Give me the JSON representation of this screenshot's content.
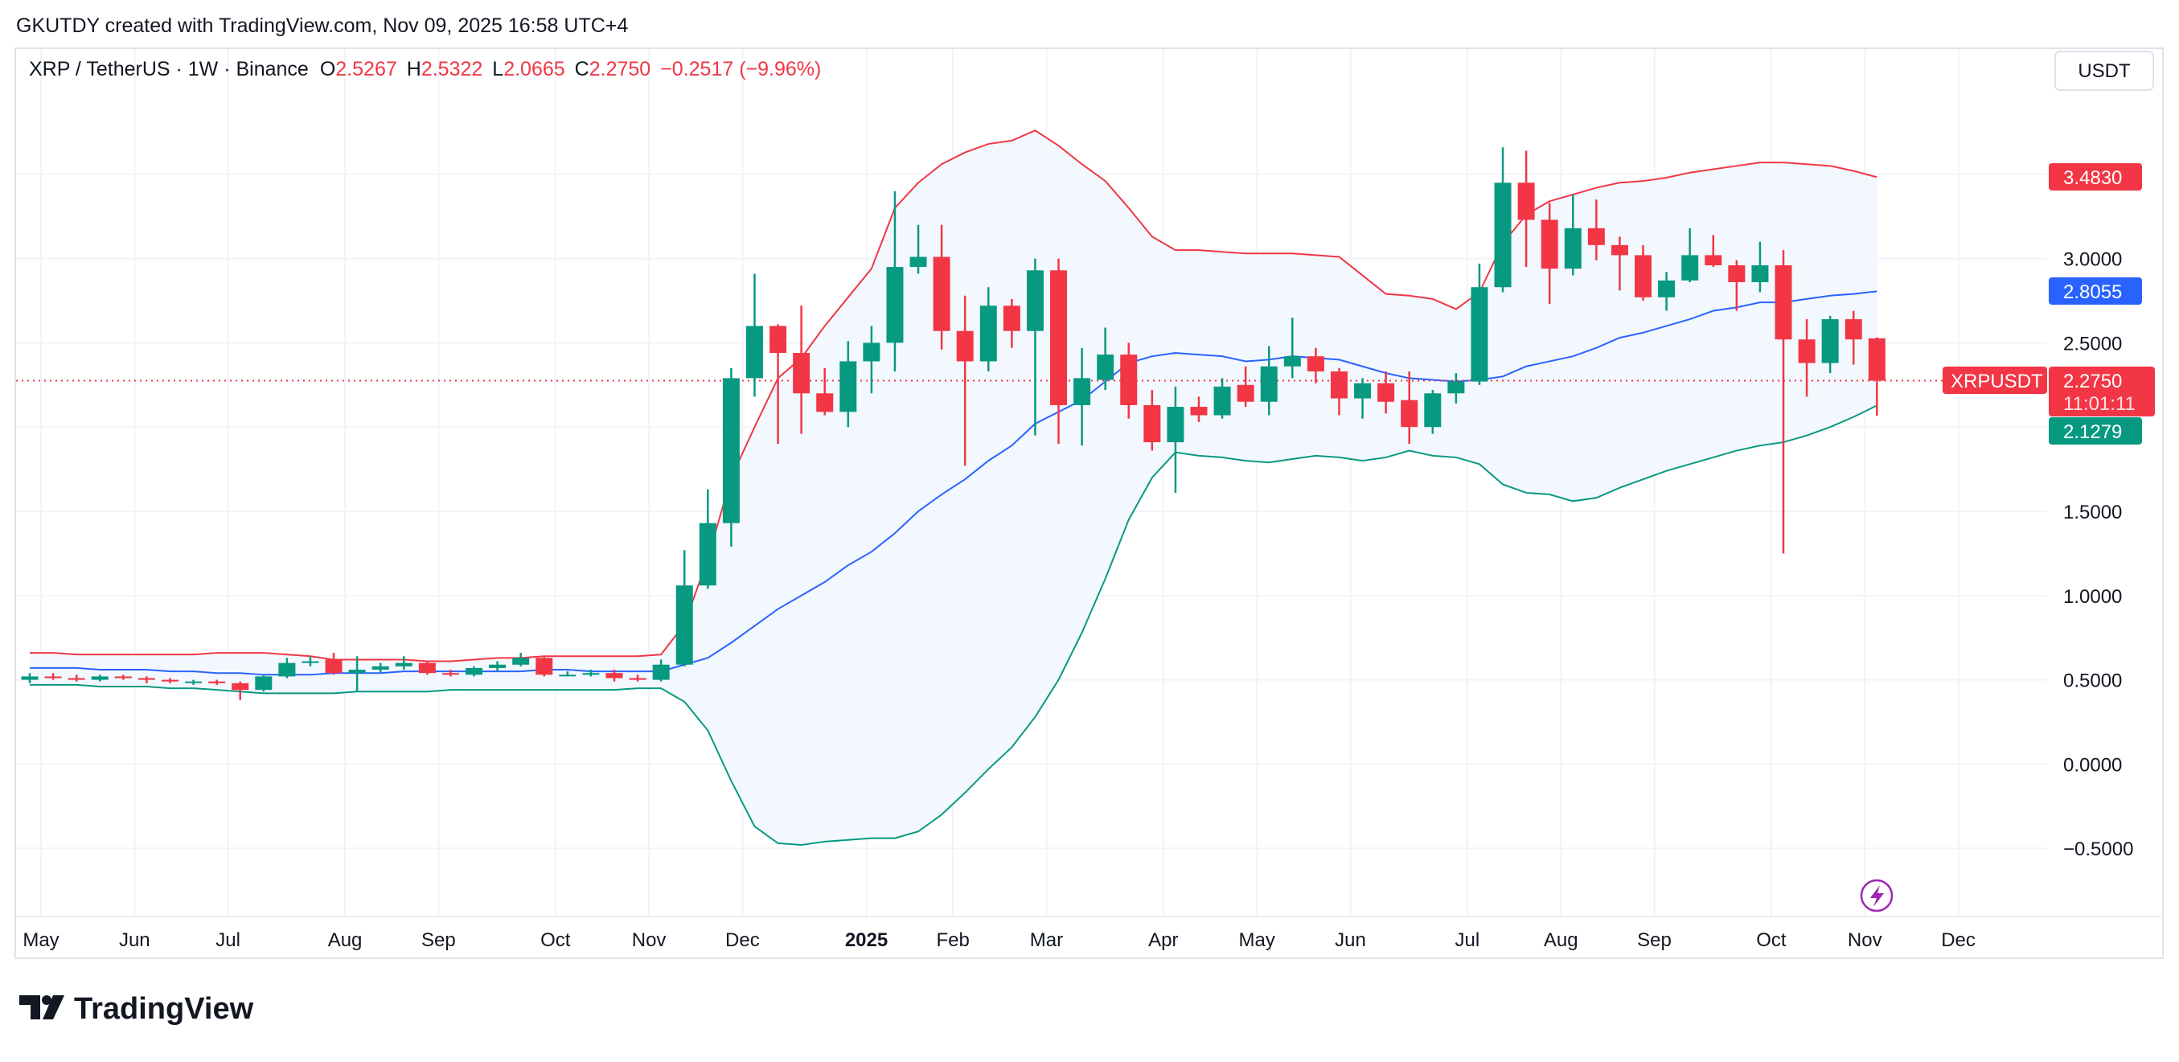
{
  "header": {
    "attribution": "GKUTDY created with TradingView.com, Nov 09, 2025 16:58 UTC+4",
    "symbol": "XRP / TetherUS · 1W · Binance",
    "o_label": "O",
    "o_value": "2.5267",
    "h_label": "H",
    "h_value": "2.5322",
    "l_label": "L",
    "l_value": "2.0665",
    "c_label": "C",
    "c_value": "2.2750",
    "change": "−0.2517 (−9.96%)",
    "currency_button": "USDT"
  },
  "price_tags": {
    "upper_band": "3.4830",
    "middle_band": "2.8055",
    "symbol_tag": "XRPUSDT",
    "last_price": "2.2750",
    "countdown": "11:01:11",
    "lower_band": "2.1279"
  },
  "brand": {
    "logo_text": "TradingView"
  },
  "icons": {
    "bar_replay_marker": "lightning-icon"
  },
  "colors": {
    "up": "#089981",
    "down": "#F23645",
    "basis": "#2962FF",
    "upper": "#F23645",
    "lower": "#089981",
    "band_fill": "#F2F8FE",
    "marker": "#9C27B0"
  },
  "chart_data": {
    "type": "candlestick",
    "title": "XRP / TetherUS · 1W · Binance",
    "interval": "1W",
    "ylim": [
      -0.75,
      3.9
    ],
    "y_ticks": [
      "3.0000",
      "2.5000",
      "1.5000",
      "1.0000",
      "0.5000",
      "0.0000",
      "−0.5000"
    ],
    "y_tick_values": [
      3.0,
      2.5,
      1.5,
      1.0,
      0.5,
      0.0,
      -0.5
    ],
    "x_ticks": [
      "May",
      "Jun",
      "Jul",
      "Aug",
      "Sep",
      "Oct",
      "Nov",
      "Dec",
      "2025",
      "Feb",
      "Mar",
      "Apr",
      "May",
      "Jun",
      "Jul",
      "Aug",
      "Sep",
      "Oct",
      "Nov",
      "Dec"
    ],
    "x_tick_weeks": [
      0.5,
      4.5,
      8.5,
      13.5,
      17.5,
      22.5,
      26.5,
      30.5,
      35.8,
      39.5,
      43.5,
      48.5,
      52.5,
      56.5,
      61.5,
      65.5,
      69.5,
      74.5,
      78.5,
      82.5
    ],
    "grid": true,
    "first_week": "2024-04-29",
    "ohlc": [
      [
        0.5,
        0.54,
        0.48,
        0.52
      ],
      [
        0.52,
        0.54,
        0.5,
        0.51
      ],
      [
        0.51,
        0.53,
        0.49,
        0.5
      ],
      [
        0.5,
        0.53,
        0.49,
        0.52
      ],
      [
        0.52,
        0.53,
        0.5,
        0.51
      ],
      [
        0.51,
        0.52,
        0.48,
        0.5
      ],
      [
        0.5,
        0.51,
        0.48,
        0.49
      ],
      [
        0.49,
        0.5,
        0.47,
        0.49
      ],
      [
        0.49,
        0.5,
        0.47,
        0.48
      ],
      [
        0.48,
        0.49,
        0.38,
        0.44
      ],
      [
        0.44,
        0.53,
        0.43,
        0.52
      ],
      [
        0.52,
        0.63,
        0.51,
        0.6
      ],
      [
        0.6,
        0.64,
        0.58,
        0.61
      ],
      [
        0.62,
        0.66,
        0.53,
        0.54
      ],
      [
        0.54,
        0.64,
        0.43,
        0.56
      ],
      [
        0.56,
        0.6,
        0.54,
        0.58
      ],
      [
        0.58,
        0.64,
        0.56,
        0.6
      ],
      [
        0.6,
        0.61,
        0.53,
        0.54
      ],
      [
        0.54,
        0.56,
        0.52,
        0.53
      ],
      [
        0.53,
        0.58,
        0.52,
        0.57
      ],
      [
        0.57,
        0.61,
        0.55,
        0.59
      ],
      [
        0.59,
        0.66,
        0.58,
        0.63
      ],
      [
        0.63,
        0.64,
        0.52,
        0.53
      ],
      [
        0.53,
        0.55,
        0.52,
        0.53
      ],
      [
        0.53,
        0.56,
        0.52,
        0.54
      ],
      [
        0.54,
        0.56,
        0.49,
        0.51
      ],
      [
        0.51,
        0.53,
        0.49,
        0.5
      ],
      [
        0.5,
        0.62,
        0.49,
        0.59
      ],
      [
        0.59,
        1.27,
        0.58,
        1.06
      ],
      [
        1.06,
        1.63,
        1.04,
        1.43
      ],
      [
        1.43,
        2.35,
        1.29,
        2.29
      ],
      [
        2.29,
        2.91,
        2.18,
        2.6
      ],
      [
        2.6,
        2.61,
        1.9,
        2.44
      ],
      [
        2.44,
        2.72,
        1.96,
        2.2
      ],
      [
        2.2,
        2.35,
        2.07,
        2.09
      ],
      [
        2.09,
        2.51,
        2.0,
        2.39
      ],
      [
        2.39,
        2.6,
        2.2,
        2.5
      ],
      [
        2.5,
        3.4,
        2.33,
        2.95
      ],
      [
        2.95,
        3.2,
        2.91,
        3.01
      ],
      [
        3.01,
        3.2,
        2.46,
        2.57
      ],
      [
        2.57,
        2.78,
        1.77,
        2.39
      ],
      [
        2.39,
        2.83,
        2.33,
        2.72
      ],
      [
        2.72,
        2.76,
        2.47,
        2.57
      ],
      [
        2.57,
        3.0,
        1.95,
        2.93
      ],
      [
        2.93,
        3.0,
        1.9,
        2.13
      ],
      [
        2.13,
        2.47,
        1.89,
        2.29
      ],
      [
        2.28,
        2.59,
        2.22,
        2.43
      ],
      [
        2.43,
        2.5,
        2.05,
        2.13
      ],
      [
        2.13,
        2.22,
        1.86,
        1.91
      ],
      [
        1.91,
        2.24,
        1.61,
        2.12
      ],
      [
        2.12,
        2.18,
        2.03,
        2.07
      ],
      [
        2.07,
        2.29,
        2.05,
        2.24
      ],
      [
        2.25,
        2.36,
        2.12,
        2.15
      ],
      [
        2.15,
        2.48,
        2.07,
        2.36
      ],
      [
        2.36,
        2.65,
        2.29,
        2.42
      ],
      [
        2.42,
        2.47,
        2.26,
        2.33
      ],
      [
        2.33,
        2.35,
        2.07,
        2.17
      ],
      [
        2.17,
        2.29,
        2.05,
        2.26
      ],
      [
        2.26,
        2.33,
        2.08,
        2.15
      ],
      [
        2.16,
        2.33,
        1.9,
        2.0
      ],
      [
        2.0,
        2.22,
        1.96,
        2.2
      ],
      [
        2.2,
        2.32,
        2.14,
        2.27
      ],
      [
        2.27,
        2.97,
        2.25,
        2.83
      ],
      [
        2.83,
        3.66,
        2.8,
        3.45
      ],
      [
        3.45,
        3.64,
        2.95,
        3.23
      ],
      [
        3.23,
        3.33,
        2.73,
        2.94
      ],
      [
        2.94,
        3.38,
        2.9,
        3.18
      ],
      [
        3.18,
        3.35,
        2.99,
        3.08
      ],
      [
        3.08,
        3.13,
        2.81,
        3.02
      ],
      [
        3.02,
        3.08,
        2.75,
        2.77
      ],
      [
        2.77,
        2.92,
        2.69,
        2.87
      ],
      [
        2.87,
        3.18,
        2.86,
        3.02
      ],
      [
        3.02,
        3.14,
        2.95,
        2.96
      ],
      [
        2.96,
        2.99,
        2.69,
        2.86
      ],
      [
        2.86,
        3.1,
        2.8,
        2.96
      ],
      [
        2.96,
        3.05,
        1.25,
        2.52
      ],
      [
        2.52,
        2.64,
        2.18,
        2.38
      ],
      [
        2.38,
        2.66,
        2.32,
        2.64
      ],
      [
        2.64,
        2.69,
        2.37,
        2.52
      ],
      [
        2.5267,
        2.5322,
        2.0665,
        2.275
      ]
    ],
    "bollinger": {
      "upper": [
        0.66,
        0.66,
        0.65,
        0.65,
        0.65,
        0.65,
        0.65,
        0.65,
        0.66,
        0.66,
        0.66,
        0.65,
        0.64,
        0.62,
        0.62,
        0.62,
        0.62,
        0.61,
        0.61,
        0.62,
        0.63,
        0.63,
        0.64,
        0.64,
        0.64,
        0.64,
        0.64,
        0.65,
        0.83,
        1.22,
        1.7,
        2.0,
        2.29,
        2.41,
        2.6,
        2.77,
        2.94,
        3.3,
        3.45,
        3.56,
        3.63,
        3.68,
        3.7,
        3.76,
        3.67,
        3.56,
        3.46,
        3.3,
        3.13,
        3.05,
        3.05,
        3.04,
        3.03,
        3.03,
        3.03,
        3.02,
        3.01,
        2.9,
        2.79,
        2.78,
        2.76,
        2.7,
        2.8,
        3.09,
        3.26,
        3.34,
        3.38,
        3.42,
        3.45,
        3.46,
        3.48,
        3.51,
        3.53,
        3.55,
        3.57,
        3.57,
        3.56,
        3.55,
        3.52,
        3.483
      ],
      "basis": [
        0.57,
        0.57,
        0.57,
        0.56,
        0.56,
        0.56,
        0.55,
        0.55,
        0.54,
        0.54,
        0.53,
        0.53,
        0.53,
        0.54,
        0.54,
        0.54,
        0.55,
        0.55,
        0.55,
        0.55,
        0.55,
        0.55,
        0.56,
        0.56,
        0.55,
        0.55,
        0.55,
        0.55,
        0.59,
        0.63,
        0.72,
        0.82,
        0.92,
        1.0,
        1.08,
        1.18,
        1.26,
        1.37,
        1.5,
        1.6,
        1.69,
        1.8,
        1.89,
        2.02,
        2.09,
        2.16,
        2.27,
        2.38,
        2.42,
        2.44,
        2.43,
        2.42,
        2.39,
        2.4,
        2.42,
        2.41,
        2.4,
        2.36,
        2.32,
        2.29,
        2.28,
        2.27,
        2.28,
        2.3,
        2.36,
        2.39,
        2.42,
        2.47,
        2.53,
        2.56,
        2.6,
        2.64,
        2.69,
        2.71,
        2.74,
        2.74,
        2.76,
        2.78,
        2.79,
        2.8055
      ],
      "lower": [
        0.47,
        0.47,
        0.47,
        0.46,
        0.46,
        0.46,
        0.45,
        0.45,
        0.44,
        0.43,
        0.42,
        0.42,
        0.42,
        0.42,
        0.43,
        0.43,
        0.43,
        0.43,
        0.44,
        0.44,
        0.44,
        0.44,
        0.44,
        0.44,
        0.44,
        0.44,
        0.45,
        0.45,
        0.37,
        0.2,
        -0.1,
        -0.37,
        -0.47,
        -0.48,
        -0.46,
        -0.45,
        -0.44,
        -0.44,
        -0.4,
        -0.3,
        -0.17,
        -0.03,
        0.1,
        0.28,
        0.5,
        0.78,
        1.1,
        1.45,
        1.7,
        1.85,
        1.83,
        1.82,
        1.8,
        1.79,
        1.81,
        1.83,
        1.82,
        1.8,
        1.82,
        1.86,
        1.83,
        1.82,
        1.78,
        1.66,
        1.61,
        1.6,
        1.56,
        1.58,
        1.64,
        1.69,
        1.74,
        1.78,
        1.82,
        1.86,
        1.89,
        1.91,
        1.95,
        2.0,
        2.06,
        2.1279
      ]
    },
    "last_price": 2.275
  }
}
